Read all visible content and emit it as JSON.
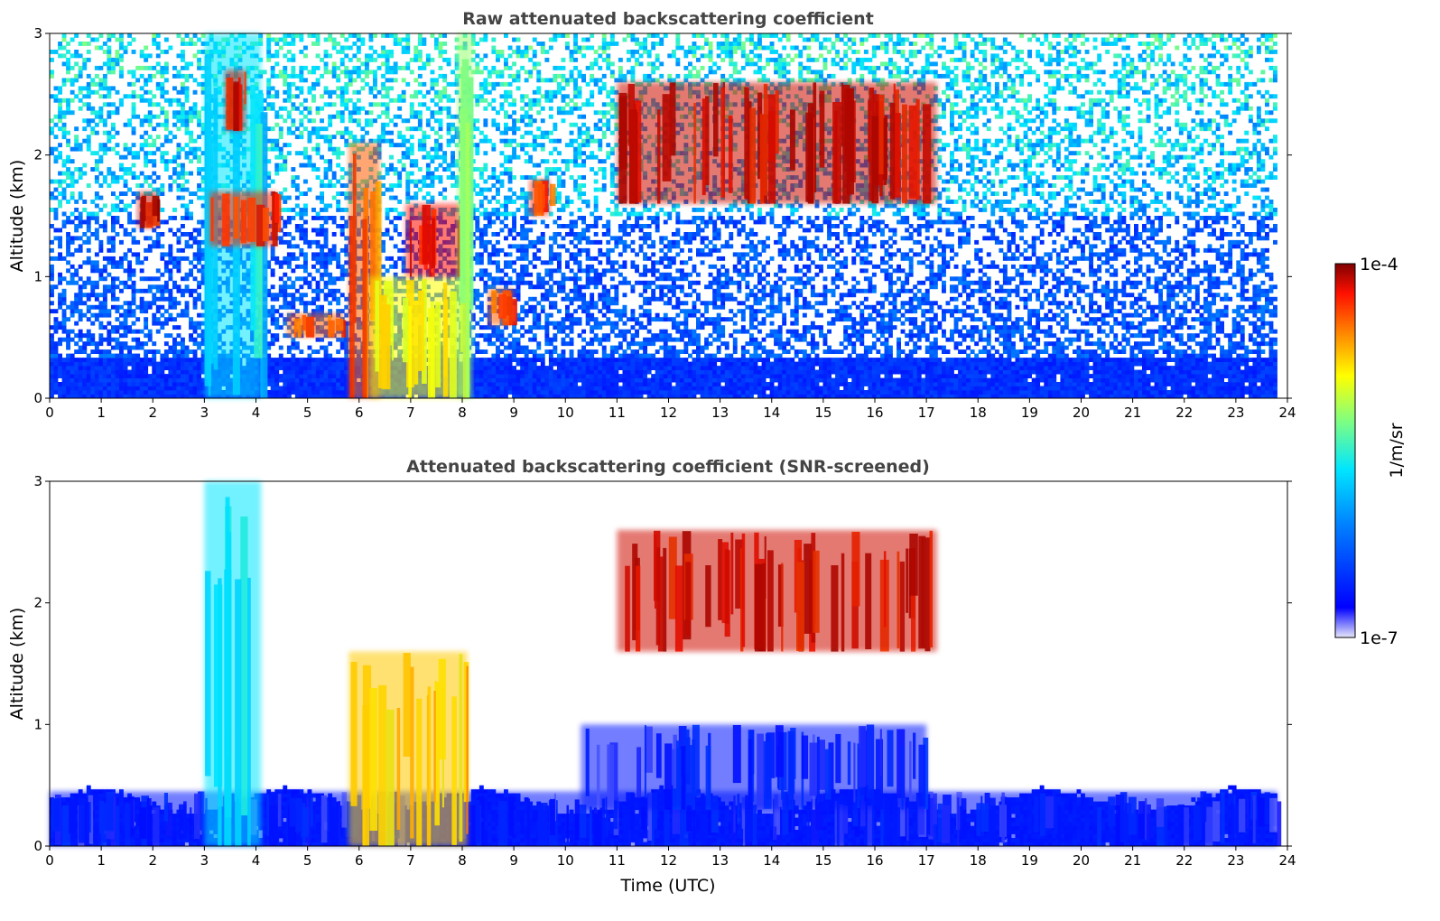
{
  "chart_data": [
    {
      "type": "heatmap",
      "title": "Raw attenuated backscattering coefficient",
      "xlabel": "",
      "ylabel": "Altitude (km)",
      "xlim": [
        0,
        24
      ],
      "ylim": [
        0,
        3
      ],
      "xticks": [
        "0",
        "1",
        "2",
        "3",
        "4",
        "5",
        "6",
        "7",
        "8",
        "9",
        "10",
        "11",
        "12",
        "13",
        "14",
        "15",
        "16",
        "17",
        "18",
        "19",
        "20",
        "21",
        "22",
        "23",
        "24"
      ],
      "yticks": [
        "0",
        "1",
        "2",
        "3"
      ],
      "data_end_hour": 23.8,
      "features": [
        {
          "x": [
            3.0,
            4.1
          ],
          "y": [
            0,
            3.0
          ],
          "level": 0.45
        },
        {
          "x": [
            3.1,
            4.4
          ],
          "y": [
            1.25,
            1.7
          ],
          "level": 0.9
        },
        {
          "x": [
            3.4,
            3.8
          ],
          "y": [
            2.2,
            2.7
          ],
          "level": 0.95
        },
        {
          "x": [
            5.8,
            6.4
          ],
          "y": [
            0.0,
            2.1
          ],
          "level": 0.85
        },
        {
          "x": [
            6.2,
            8.1
          ],
          "y": [
            0.0,
            1.0
          ],
          "level": 0.7
        },
        {
          "x": [
            6.9,
            8.0
          ],
          "y": [
            1.0,
            1.6
          ],
          "level": 0.92
        },
        {
          "x": [
            7.9,
            8.2
          ],
          "y": [
            0.0,
            3.0
          ],
          "level": 0.6
        },
        {
          "x": [
            4.6,
            5.7
          ],
          "y": [
            0.5,
            0.7
          ],
          "level": 0.85
        },
        {
          "x": [
            1.7,
            2.1
          ],
          "y": [
            1.4,
            1.7
          ],
          "level": 0.95
        },
        {
          "x": [
            8.5,
            9.0
          ],
          "y": [
            0.6,
            0.9
          ],
          "level": 0.85
        },
        {
          "x": [
            9.3,
            9.7
          ],
          "y": [
            1.5,
            1.8
          ],
          "level": 0.9
        },
        {
          "x": [
            11.0,
            17.2
          ],
          "y": [
            1.6,
            2.6
          ],
          "level": 0.95
        }
      ]
    },
    {
      "type": "heatmap",
      "title": "Attenuated backscattering coefficient (SNR-screened)",
      "xlabel": "Time (UTC)",
      "ylabel": "Altitude (km)",
      "xlim": [
        0,
        24
      ],
      "ylim": [
        0,
        3
      ],
      "xticks": [
        "0",
        "1",
        "2",
        "3",
        "4",
        "5",
        "6",
        "7",
        "8",
        "9",
        "10",
        "11",
        "12",
        "13",
        "14",
        "15",
        "16",
        "17",
        "18",
        "19",
        "20",
        "21",
        "22",
        "23",
        "24"
      ],
      "yticks": [
        "0",
        "1",
        "2",
        "3"
      ],
      "data_end_hour": 23.8,
      "features": [
        {
          "x": [
            0,
            23.8
          ],
          "y": [
            0,
            0.45
          ],
          "level": 0.12
        },
        {
          "x": [
            3.0,
            4.1
          ],
          "y": [
            0,
            3.0
          ],
          "level": 0.45
        },
        {
          "x": [
            5.8,
            8.1
          ],
          "y": [
            0,
            1.6
          ],
          "level": 0.75
        },
        {
          "x": [
            10.3,
            17.0
          ],
          "y": [
            0.3,
            1.0
          ],
          "level": 0.12
        },
        {
          "x": [
            11.0,
            17.2
          ],
          "y": [
            1.6,
            2.6
          ],
          "level": 0.95
        }
      ]
    }
  ],
  "colorbar": {
    "label": "1/m/sr",
    "max_label": "1e-4",
    "min_label": "1e-7",
    "colormap": "jet",
    "colors": [
      "#e6e6fa",
      "#0000ff",
      "#00ccff",
      "#00e6a0",
      "#c8ff3c",
      "#ffff00",
      "#ff8000",
      "#ff2000",
      "#800000"
    ]
  }
}
